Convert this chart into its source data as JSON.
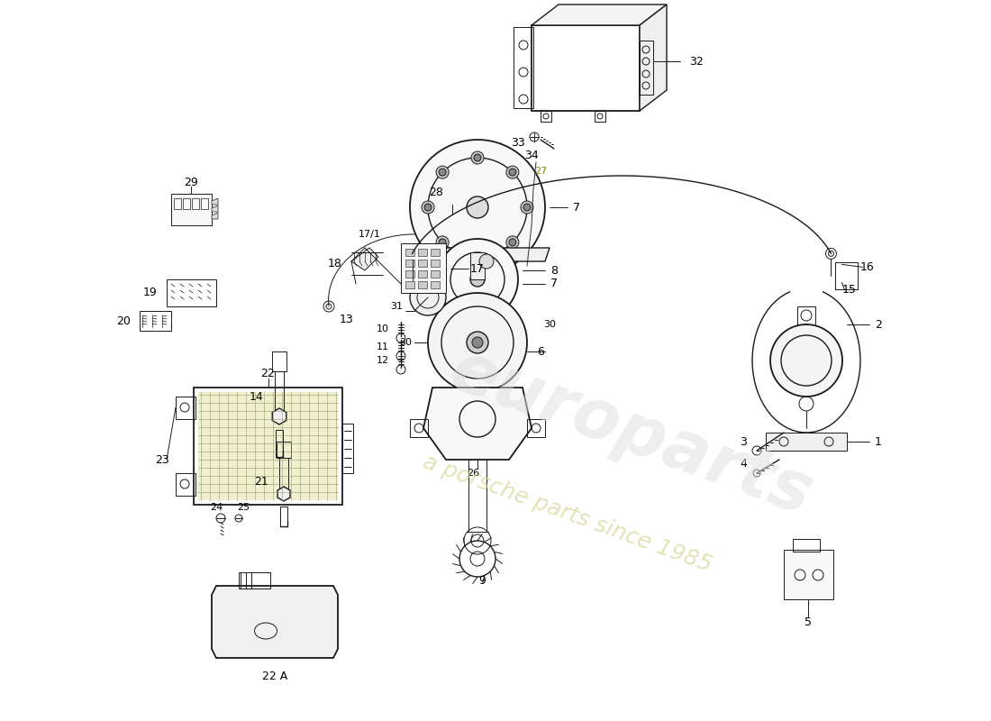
{
  "background_color": "#ffffff",
  "line_color": "#1a1a1a",
  "watermark1": "europarts",
  "watermark2": "a porsche parts since 1985",
  "label_22a": "22 A",
  "figsize": [
    11.0,
    8.0
  ],
  "dpi": 100
}
